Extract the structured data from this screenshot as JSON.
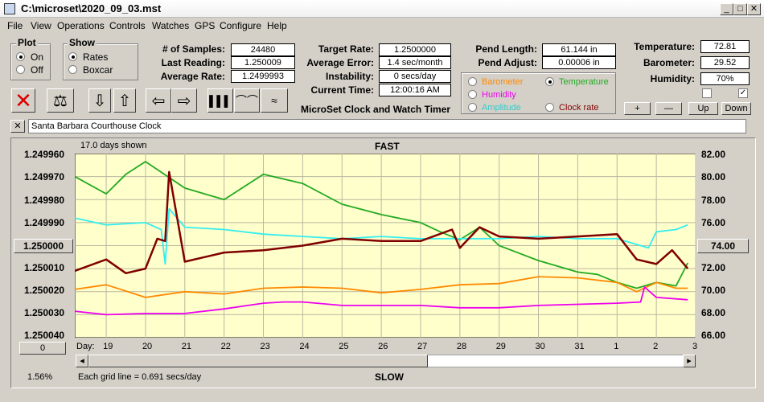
{
  "window": {
    "title": "C:\\microset\\2020_09_03.mst"
  },
  "menu": [
    "File",
    "View",
    "Operations",
    "Controls",
    "Watches",
    "GPS",
    "Configure",
    "Help"
  ],
  "plot": {
    "title": "Plot",
    "on": "On",
    "off": "Off"
  },
  "show": {
    "title": "Show",
    "rates": "Rates",
    "boxcar": "Boxcar"
  },
  "stats": {
    "samples_label": "# of Samples:",
    "samples": "24480",
    "last_label": "Last Reading:",
    "last": "1.250009",
    "avg_label": "Average Rate:",
    "avg": "1.2499993"
  },
  "target": {
    "rate_label": "Target Rate:",
    "rate": "1.2500000",
    "err_label": "Average Error:",
    "err": "1.4 sec/month",
    "inst_label": "Instability:",
    "inst": "0 secs/day",
    "time_label": "Current Time:",
    "time": "12:00:16 AM",
    "app_name": "MicroSet Clock and Watch Timer"
  },
  "pend": {
    "len_label": "Pend Length:",
    "len": "61.144 in",
    "adj_label": "Pend Adjust:",
    "adj": "0.00006 in"
  },
  "sensor_options": {
    "barometer": "Barometer",
    "temperature": "Temperature",
    "humidity": "Humidity",
    "amplitude": "Amplitude",
    "clockrate": "Clock rate"
  },
  "env": {
    "temp_label": "Temperature:",
    "temp": "72.81",
    "baro_label": "Barometer:",
    "baro": "29.52",
    "hum_label": "Humidity:",
    "hum": "70%"
  },
  "adjust_buttons": {
    "plus": "+",
    "minus": "—",
    "up": "Up",
    "down": "Down"
  },
  "clock_name": "Santa Barbara Courthouse Clock",
  "colors": {
    "chart_bg": "#ffffcc",
    "rate": "#800000",
    "temperature": "#22aa22",
    "barometer": "#ff8800",
    "humidity": "#ee00ee",
    "amplitude": "#33eeee"
  },
  "chart_data": {
    "type": "line",
    "top_label": "FAST",
    "bottom_label": "SLOW",
    "days_shown": "17.0 days shown",
    "grid_note": "Each grid line = 0.691 secs/day",
    "percent": "1.56%",
    "day_prefix": "Day:",
    "left_ticks": [
      "1.249960",
      "1.249970",
      "1.249980",
      "1.249990",
      "1.250000",
      "1.250010",
      "1.250020",
      "1.250030",
      "1.250040"
    ],
    "right_ticks": [
      "82.00",
      "80.00",
      "78.00",
      "76.00",
      "74.00",
      "72.00",
      "70.00",
      "68.00",
      "66.00"
    ],
    "left_button": "0",
    "days": [
      "19",
      "20",
      "21",
      "22",
      "23",
      "24",
      "25",
      "26",
      "27",
      "28",
      "29",
      "30",
      "31",
      "1",
      "2",
      "3"
    ],
    "ylim_left": [
      1.24996,
      1.25004
    ],
    "ylim_right": [
      66,
      82
    ],
    "series": [
      {
        "name": "Temperature",
        "color": "#22aa22",
        "x": [
          18.2,
          19,
          19.5,
          20,
          21,
          22,
          23,
          24,
          25,
          26,
          27,
          27.5,
          28,
          28.5,
          29,
          30,
          31,
          31.5,
          32,
          32.5,
          33,
          33.5,
          33.8
        ],
        "y": [
          80.0,
          78.5,
          80.2,
          81.3,
          79.0,
          78.0,
          80.2,
          79.4,
          77.6,
          76.7,
          76.0,
          75.2,
          74.5,
          75.6,
          74.0,
          72.7,
          71.7,
          71.5,
          70.8,
          70.3,
          70.8,
          70.5,
          72.5
        ]
      },
      {
        "name": "Amplitude",
        "color": "#33eeee",
        "x": [
          18.2,
          19,
          20,
          20.4,
          20.5,
          20.6,
          21,
          22,
          23,
          24,
          25,
          26,
          27,
          28,
          29,
          30,
          31,
          32,
          32.8,
          33,
          33.5,
          33.8
        ],
        "y": [
          1.249988,
          1.249991,
          1.24999,
          1.249993,
          1.250008,
          1.249984,
          1.249992,
          1.249993,
          1.249995,
          1.249996,
          1.249997,
          1.249996,
          1.249997,
          1.249997,
          1.249997,
          1.249996,
          1.249997,
          1.249997,
          1.250001,
          1.249994,
          1.249993,
          1.249991
        ]
      },
      {
        "name": "Rate",
        "color": "#800000",
        "x": [
          18.2,
          19,
          19.5,
          20,
          20.3,
          20.5,
          20.6,
          21,
          22,
          23,
          24,
          25,
          26,
          27,
          27.8,
          28,
          28.5,
          29,
          30,
          31,
          32,
          32.5,
          33,
          33.4,
          33.8
        ],
        "y": [
          1.250011,
          1.250006,
          1.250012,
          1.25001,
          1.249997,
          1.249998,
          1.249968,
          1.250007,
          1.250003,
          1.250002,
          1.25,
          1.249997,
          1.249998,
          1.249998,
          1.249993,
          1.250001,
          1.249992,
          1.249996,
          1.249997,
          1.249996,
          1.249995,
          1.250006,
          1.250008,
          1.250002,
          1.25001
        ]
      },
      {
        "name": "Barometer",
        "color": "#ff8800",
        "x": [
          18.2,
          19,
          20,
          21,
          22,
          23,
          24,
          25,
          26,
          27,
          28,
          29,
          30,
          31,
          32,
          32.5,
          33,
          33.5,
          33.8
        ],
        "y": [
          70.2,
          70.6,
          69.5,
          70.0,
          69.8,
          70.3,
          70.4,
          70.3,
          69.9,
          70.2,
          70.6,
          70.7,
          71.3,
          71.2,
          70.8,
          70.0,
          70.8,
          70.3,
          70.3
        ]
      },
      {
        "name": "Humidity",
        "color": "#ee00ee",
        "x": [
          18.2,
          19,
          20,
          21,
          22,
          23,
          23.5,
          24,
          25,
          26,
          27,
          28,
          29,
          30,
          31,
          32,
          32.6,
          32.7,
          33,
          33.8
        ],
        "y": [
          68.3,
          68.0,
          68.1,
          68.1,
          68.5,
          69.0,
          69.1,
          69.1,
          68.8,
          68.8,
          68.8,
          68.6,
          68.6,
          68.8,
          68.9,
          69.0,
          69.1,
          70.4,
          69.5,
          69.3
        ]
      }
    ]
  }
}
